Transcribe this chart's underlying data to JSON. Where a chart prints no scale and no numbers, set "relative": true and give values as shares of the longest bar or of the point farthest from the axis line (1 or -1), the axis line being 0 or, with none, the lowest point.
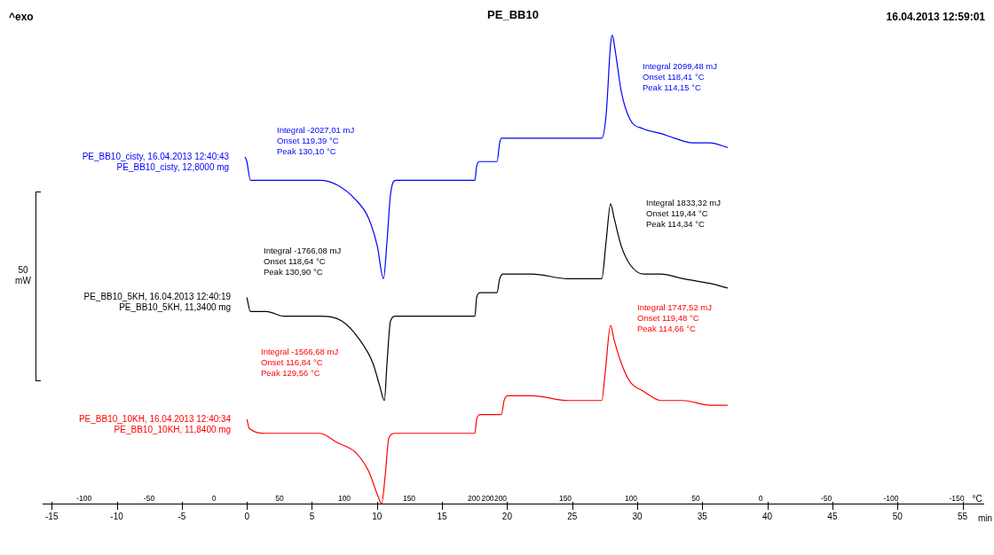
{
  "chart_data": {
    "type": "line",
    "title": "PE_BB10",
    "xlabel": "min",
    "relative": true,
    "legend": false,
    "xlim": [
      -15.7,
      56.6
    ],
    "xticks": [
      -15,
      -10,
      -5,
      0,
      5,
      10,
      15,
      20,
      25,
      30,
      35,
      40,
      45,
      50,
      55
    ],
    "series": [
      {
        "name": "PE_BB10_cisty, 16.04.2013 12:40:43\nPE_BB10_cisty, 12,8000 mg",
        "color": "#0000ff",
        "x": [
          -0.14,
          0,
          0.27,
          1.5,
          2.73,
          5.59,
          6.95,
          8.32,
          9.34,
          10.02,
          10.5,
          10.77,
          11.04,
          11.45,
          12.41,
          15.13,
          17.52,
          17.66,
          17.86,
          19.22,
          19.43,
          19.56,
          21.95,
          24.68,
          26.04,
          27.27,
          27.61,
          27.95,
          28.08,
          28.29,
          28.77,
          29.45,
          30.47,
          31.83,
          32.86,
          34.22,
          35.58,
          36.95
        ],
        "values": [
          0.74,
          0.73,
          0.69,
          0.69,
          0.69,
          0.69,
          0.68,
          0.65,
          0.61,
          0.55,
          0.48,
          0.56,
          0.66,
          0.69,
          0.69,
          0.69,
          0.69,
          0.72,
          0.73,
          0.73,
          0.77,
          0.78,
          0.78,
          0.78,
          0.78,
          0.78,
          0.83,
          0.98,
          1.0,
          0.97,
          0.88,
          0.82,
          0.8,
          0.79,
          0.78,
          0.77,
          0.77,
          0.76
        ]
      },
      {
        "name": "PE_BB10_5KH, 16.04.2013 12:40:19\nPE_BB10_5KH, 11,3400 mg",
        "color": "#000000",
        "x": [
          0,
          0.27,
          1.5,
          2.86,
          5.59,
          7.29,
          8.66,
          9.68,
          10.22,
          10.57,
          10.77,
          11.04,
          11.45,
          13.77,
          17.52,
          17.66,
          17.93,
          19.22,
          19.43,
          19.7,
          21.95,
          24.68,
          26.04,
          27.27,
          27.61,
          27.95,
          28.22,
          28.77,
          29.45,
          30.47,
          31.83,
          33.54,
          35.58,
          36.95
        ],
        "values": [
          0.44,
          0.41,
          0.41,
          0.4,
          0.4,
          0.39,
          0.35,
          0.3,
          0.25,
          0.22,
          0.3,
          0.39,
          0.4,
          0.4,
          0.4,
          0.44,
          0.45,
          0.45,
          0.48,
          0.49,
          0.49,
          0.48,
          0.48,
          0.48,
          0.56,
          0.64,
          0.61,
          0.55,
          0.51,
          0.49,
          0.49,
          0.48,
          0.47,
          0.46
        ]
      },
      {
        "name": "PE_BB10_10KH, 16.04.2013 12:40:34\nPE_BB10_10KH, 11,8400 mg",
        "color": "#ff0000",
        "x": [
          0,
          0.2,
          1.5,
          2.86,
          5.59,
          6.95,
          8.32,
          9.34,
          10.02,
          10.36,
          10.63,
          10.91,
          11.38,
          13.77,
          17.52,
          17.66,
          17.93,
          19.56,
          19.77,
          20.04,
          21.95,
          24.68,
          27.27,
          27.54,
          27.95,
          28.22,
          28.77,
          29.45,
          30.47,
          31.83,
          33.54,
          35.58,
          36.95
        ],
        "values": [
          0.18,
          0.16,
          0.15,
          0.15,
          0.15,
          0.13,
          0.11,
          0.07,
          0.02,
          0,
          0.06,
          0.14,
          0.15,
          0.15,
          0.15,
          0.18,
          0.19,
          0.19,
          0.22,
          0.23,
          0.23,
          0.22,
          0.22,
          0.28,
          0.38,
          0.35,
          0.3,
          0.26,
          0.24,
          0.22,
          0.22,
          0.21,
          0.21
        ]
      }
    ],
    "annotations": [
      "^exo",
      "16.04.2013 12:59:01",
      "50\nmW",
      "Integral -2027,01 mJ\nOnset 119,39 °C\nPeak 130,10 °C",
      "Integral 2099,48 mJ\nOnset 118,41 °C\nPeak 114,15 °C",
      "Integral -1766,08 mJ\nOnset 118,64 °C\nPeak 130,90 °C",
      "Integral 1833,32 mJ\nOnset 119,44 °C\nPeak 114,34 °C",
      "Integral -1566,68 mJ\nOnset 116,84 °C\nPeak 129,56 °C",
      "Integral 1747,52 mJ\nOnset 119,48 °C\nPeak 114,66 °C",
      "-100",
      "-50",
      "0",
      "50",
      "100",
      "150",
      "200",
      "200",
      "200",
      "150",
      "100",
      "50",
      "0",
      "-50",
      "-100",
      "-150",
      "°C"
    ]
  }
}
